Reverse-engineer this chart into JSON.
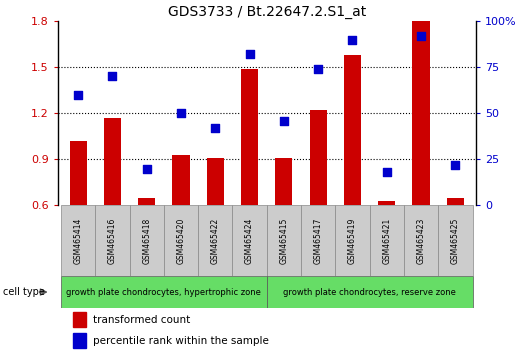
{
  "title": "GDS3733 / Bt.22647.2.S1_at",
  "samples": [
    "GSM465414",
    "GSM465416",
    "GSM465418",
    "GSM465420",
    "GSM465422",
    "GSM465424",
    "GSM465415",
    "GSM465417",
    "GSM465419",
    "GSM465421",
    "GSM465423",
    "GSM465425"
  ],
  "transformed_count": [
    1.02,
    1.17,
    0.65,
    0.93,
    0.91,
    1.49,
    0.91,
    1.22,
    1.58,
    0.63,
    1.8,
    0.65
  ],
  "percentile_rank": [
    60,
    70,
    20,
    50,
    42,
    82,
    46,
    74,
    90,
    18,
    92,
    22
  ],
  "ylim_left": [
    0.6,
    1.8
  ],
  "ylim_right": [
    0,
    100
  ],
  "yticks_left": [
    0.6,
    0.9,
    1.2,
    1.5,
    1.8
  ],
  "yticks_right": [
    0,
    25,
    50,
    75,
    100
  ],
  "bar_color": "#cc0000",
  "dot_color": "#0000cc",
  "group1_label": "growth plate chondrocytes, hypertrophic zone",
  "group2_label": "growth plate chondrocytes, reserve zone",
  "group1_count": 6,
  "group2_count": 6,
  "cell_type_label": "cell type",
  "legend1": "transformed count",
  "legend2": "percentile rank within the sample",
  "cell_type_bg": "#66dd66",
  "tick_bg": "#cccccc",
  "bar_width": 0.5,
  "grid_lines": [
    0.9,
    1.2,
    1.5
  ],
  "dot_size": 28
}
